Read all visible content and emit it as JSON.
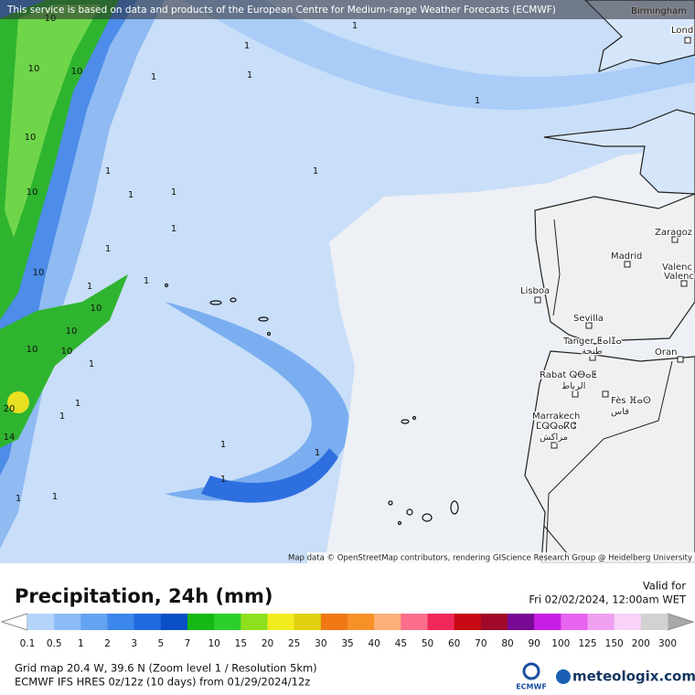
{
  "header": {
    "notice": "This service is based on data and products of the European Centre for Medium-range Weather Forecasts (ECMWF)"
  },
  "map": {
    "attribution": "Map data © OpenStreetMap contributors, rendering GIScience Research Group @ Heidelberg University",
    "cities": [
      "Birmingham",
      "Lond",
      "Zaragoz",
      "Madrid",
      "Valenc",
      "Valenc",
      "Lisboa",
      "Sevilla",
      "Tanger ⵟⴰⵏⵊⴰ",
      "طنجة",
      "Oran",
      "Rabat ⵕⴱⴰⵟ",
      "الرباط",
      "Fès ⴼⴰⵙ",
      "فاس",
      "Marrakech",
      "ⵎⵕⵕⴰⴽⵛ",
      "مراكش"
    ],
    "contour_labels": [
      "10",
      "1",
      "1",
      "10",
      "10",
      "1",
      "1",
      "1",
      "10",
      "1",
      "10",
      "1",
      "1",
      "1",
      "1",
      "1",
      "10",
      "1",
      "1",
      "10",
      "10",
      "10",
      "10",
      "1",
      "20",
      "1",
      "1",
      "14",
      "1",
      "1",
      "1",
      "1",
      "1"
    ]
  },
  "footer": {
    "title": "Precipitation, 24h (mm)",
    "valid_label": "Valid for",
    "valid_time": "Fri 02/02/2024, 12:00am WET",
    "scale": [
      0.1,
      0.5,
      1,
      2,
      3,
      5,
      7,
      10,
      15,
      20,
      25,
      30,
      35,
      40,
      45,
      50,
      60,
      70,
      80,
      90,
      100,
      125,
      150,
      200,
      300
    ],
    "colors": [
      "#b4d4fa",
      "#8cbcf7",
      "#64a2f2",
      "#3c86ec",
      "#1e6ae0",
      "#0a4fc8",
      "#16b816",
      "#2ccf2c",
      "#8ee01e",
      "#f2ec1e",
      "#e0d010",
      "#f07814",
      "#f89028",
      "#fcb078",
      "#fc6e8c",
      "#f0285a",
      "#c80a14",
      "#a00a28",
      "#780a96",
      "#c81ee6",
      "#e664f0",
      "#f0a0f0",
      "#f8d2f8",
      "#d2d2d2"
    ],
    "grid_info": "Grid map 20.4 W, 39.6 N (Zoom level 1 / Resolution 5km)",
    "model_info": "ECMWF IFS HRES 0z/12z (10 days) from  01/29/2024/12z",
    "ecmwf_logo": "ECMWF",
    "brand": "meteologix.com"
  }
}
